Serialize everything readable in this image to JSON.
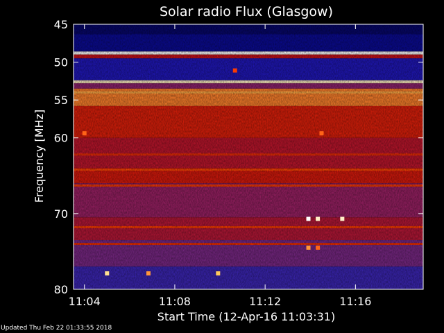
{
  "chart_data": {
    "type": "heatmap",
    "title": "Solar radio Flux (Glasgow)",
    "xlabel": "Start Time (12-Apr-16 11:03:31)",
    "ylabel": "Frequency [MHz]",
    "xlim": [
      "11:03:31",
      "11:19:00"
    ],
    "ylim": [
      45,
      80
    ],
    "x_ticks": [
      "11:04",
      "11:08",
      "11:12",
      "11:16"
    ],
    "y_ticks": [
      45,
      50,
      55,
      60,
      70,
      80
    ],
    "colorscale": [
      "#000030",
      "#1010c0",
      "#5030b0",
      "#a02060",
      "#d01010",
      "#ff4000",
      "#ffd060",
      "#ffffff"
    ],
    "bands": [
      {
        "freq_start": 45.0,
        "freq_end": 46.3,
        "intensity": 0.06
      },
      {
        "freq_start": 46.3,
        "freq_end": 48.6,
        "intensity": 0.1
      },
      {
        "freq_start": 48.6,
        "freq_end": 49.0,
        "intensity": 0.98
      },
      {
        "freq_start": 49.0,
        "freq_end": 49.5,
        "intensity": 0.55
      },
      {
        "freq_start": 49.5,
        "freq_end": 52.4,
        "intensity": 0.18
      },
      {
        "freq_start": 52.4,
        "freq_end": 52.8,
        "intensity": 0.92
      },
      {
        "freq_start": 52.8,
        "freq_end": 53.5,
        "intensity": 0.4
      },
      {
        "freq_start": 53.5,
        "freq_end": 55.8,
        "intensity": 0.78
      },
      {
        "freq_start": 55.8,
        "freq_end": 60.0,
        "intensity": 0.62
      },
      {
        "freq_start": 60.0,
        "freq_end": 64.0,
        "intensity": 0.52
      },
      {
        "freq_start": 64.0,
        "freq_end": 66.0,
        "intensity": 0.6
      },
      {
        "freq_start": 66.0,
        "freq_end": 70.5,
        "intensity": 0.42
      },
      {
        "freq_start": 70.5,
        "freq_end": 73.5,
        "intensity": 0.5
      },
      {
        "freq_start": 73.5,
        "freq_end": 77.0,
        "intensity": 0.36
      },
      {
        "freq_start": 77.0,
        "freq_end": 80.0,
        "intensity": 0.24
      }
    ],
    "lines": [
      {
        "freq": 48.8,
        "intensity": 1.0
      },
      {
        "freq": 52.6,
        "intensity": 0.95
      },
      {
        "freq": 54.0,
        "intensity": 0.82
      },
      {
        "freq": 62.2,
        "intensity": 0.66
      },
      {
        "freq": 64.2,
        "intensity": 0.72
      },
      {
        "freq": 66.3,
        "intensity": 0.7
      },
      {
        "freq": 71.8,
        "intensity": 0.7
      },
      {
        "freq": 74.0,
        "intensity": 0.66
      }
    ],
    "bursts": [
      {
        "time": "11:04:00",
        "freq": 59.4,
        "intensity": 0.75
      },
      {
        "time": "11:14:30",
        "freq": 59.4,
        "intensity": 0.75
      },
      {
        "time": "11:13:55",
        "freq": 70.7,
        "intensity": 1.0
      },
      {
        "time": "11:14:20",
        "freq": 70.7,
        "intensity": 0.95
      },
      {
        "time": "11:15:25",
        "freq": 70.7,
        "intensity": 0.95
      },
      {
        "time": "11:05:00",
        "freq": 77.9,
        "intensity": 0.9
      },
      {
        "time": "11:06:50",
        "freq": 77.9,
        "intensity": 0.8
      },
      {
        "time": "11:09:55",
        "freq": 77.9,
        "intensity": 0.85
      },
      {
        "time": "11:13:55",
        "freq": 74.5,
        "intensity": 0.8
      },
      {
        "time": "11:14:20",
        "freq": 74.5,
        "intensity": 0.75
      },
      {
        "time": "11:10:40",
        "freq": 51.1,
        "intensity": 0.7
      }
    ]
  },
  "footer": {
    "updated": "Updated Thu Feb 22 01:33:55 2018"
  }
}
